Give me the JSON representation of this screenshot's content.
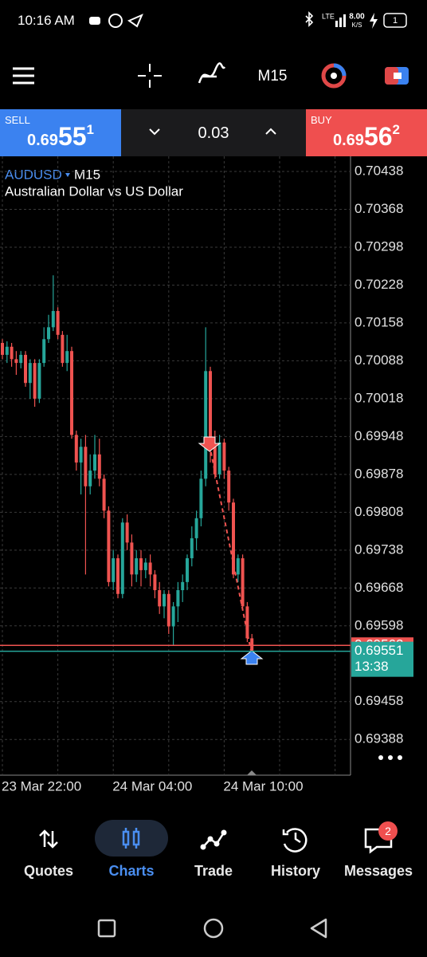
{
  "status_bar": {
    "time": "10:16 AM",
    "network": "LTE",
    "speed_value": "8.00",
    "speed_unit": "K/S",
    "battery": "1"
  },
  "toolbar": {
    "timeframe": "M15"
  },
  "trade_panel": {
    "sell": {
      "label": "SELL",
      "price_main": "0.69",
      "price_big": "55",
      "price_sup": "1"
    },
    "volume": "0.03",
    "buy": {
      "label": "BUY",
      "price_main": "0.69",
      "price_big": "56",
      "price_sup": "2"
    }
  },
  "chart_data": {
    "type": "candlestick",
    "symbol": "AUDUSD",
    "timeframe": "M15",
    "description": "Australian Dollar vs US Dollar",
    "categories": [
      "23 Mar 22:00",
      null,
      null,
      null,
      null,
      null,
      null,
      null,
      null,
      null,
      null,
      null,
      null,
      null,
      null,
      null,
      null,
      null,
      null,
      null,
      null,
      null,
      null,
      null,
      "24 Mar 04:00",
      null,
      null,
      null,
      null,
      null,
      null,
      null,
      null,
      null,
      null,
      null,
      null,
      null,
      null,
      null,
      null,
      null,
      null,
      null,
      null,
      null,
      null,
      null,
      "24 Mar 10:00",
      null,
      null,
      null,
      null,
      null,
      null
    ],
    "open": [
      0.70121,
      0.70099,
      0.70114,
      0.70091,
      0.70084,
      0.70099,
      0.70047,
      0.70084,
      0.70018,
      0.70084,
      0.70128,
      0.7015,
      0.7018,
      0.70136,
      0.70084,
      0.70106,
      0.69951,
      0.699,
      0.69929,
      0.69856,
      0.69885,
      0.69915,
      0.6987,
      0.69811,
      0.69679,
      0.69723,
      0.69657,
      0.69789,
      0.69752,
      0.69693,
      0.69723,
      0.69701,
      0.69715,
      0.69693,
      0.69664,
      0.69634,
      0.69657,
      0.69597,
      0.69634,
      0.69664,
      0.69679,
      0.69723,
      0.6976,
      0.69797,
      0.6987,
      0.70069,
      0.69929,
      0.69878,
      0.69937,
      0.69885,
      0.69826,
      0.69693,
      0.69723,
      0.69634,
      0.69575
    ],
    "high": [
      0.70128,
      0.70124,
      0.70121,
      0.70106,
      0.70106,
      0.70106,
      0.70091,
      0.70091,
      0.70091,
      0.7015,
      0.70173,
      0.70246,
      0.70187,
      0.70143,
      0.70136,
      0.70114,
      0.69959,
      0.69944,
      0.69951,
      0.69915,
      0.69951,
      0.69944,
      0.69878,
      0.69819,
      0.69738,
      0.6973,
      0.69797,
      0.69804,
      0.69767,
      0.69738,
      0.69738,
      0.69723,
      0.6973,
      0.69701,
      0.69679,
      0.69664,
      0.69664,
      0.69642,
      0.69679,
      0.69693,
      0.6973,
      0.69782,
      0.69811,
      0.69885,
      0.7015,
      0.70077,
      0.69959,
      0.69951,
      0.69944,
      0.69892,
      0.69833,
      0.6973,
      0.6973,
      0.69642,
      0.69583
    ],
    "low": [
      0.70091,
      0.70084,
      0.70077,
      0.70062,
      0.70074,
      0.7004,
      0.70018,
      0.70003,
      0.7001,
      0.70077,
      0.70121,
      0.70143,
      0.70128,
      0.70077,
      0.70069,
      0.69944,
      0.69885,
      0.69841,
      0.69693,
      0.69841,
      0.6987,
      0.69856,
      0.69797,
      0.69671,
      0.69664,
      0.69649,
      0.69649,
      0.69738,
      0.69671,
      0.69679,
      0.69671,
      0.69686,
      0.69671,
      0.69649,
      0.6962,
      0.69612,
      0.69583,
      0.69561,
      0.69605,
      0.69642,
      0.69664,
      0.69708,
      0.69738,
      0.69782,
      0.69856,
      0.699,
      0.6987,
      0.6987,
      0.6987,
      0.69811,
      0.69686,
      0.69679,
      0.69627,
      0.69568,
      0.69548
    ],
    "close": [
      0.70099,
      0.70114,
      0.70091,
      0.70084,
      0.70099,
      0.70047,
      0.70084,
      0.70018,
      0.70084,
      0.70128,
      0.7015,
      0.7018,
      0.70136,
      0.70084,
      0.70106,
      0.69951,
      0.699,
      0.69929,
      0.69856,
      0.69885,
      0.69915,
      0.6987,
      0.69811,
      0.69679,
      0.69723,
      0.69657,
      0.69789,
      0.69752,
      0.69693,
      0.69723,
      0.69701,
      0.69715,
      0.69693,
      0.69664,
      0.69634,
      0.69657,
      0.69597,
      0.69634,
      0.69664,
      0.69679,
      0.69723,
      0.6976,
      0.69797,
      0.6987,
      0.70069,
      0.69929,
      0.69878,
      0.69937,
      0.69885,
      0.69826,
      0.69693,
      0.69723,
      0.69634,
      0.69575,
      0.69551
    ],
    "up_color": "#26a69a",
    "down_color": "#ef5350",
    "ylim": [
      0.69322,
      0.70466
    ],
    "yticks": [
      0.70438,
      0.70368,
      0.70298,
      0.70228,
      0.70158,
      0.70088,
      0.70018,
      0.69948,
      0.69878,
      0.69808,
      0.69738,
      0.69668,
      0.69598,
      0.69458,
      0.69388
    ],
    "grid": true,
    "bid": 0.69551,
    "bid_color": "#26a69a",
    "ask": 0.69562,
    "ask_color": "#ef5350",
    "bar_timer": "13:38"
  },
  "nav": {
    "items": [
      "Quotes",
      "Charts",
      "Trade",
      "History",
      "Messages"
    ],
    "messages_badge": "2"
  }
}
